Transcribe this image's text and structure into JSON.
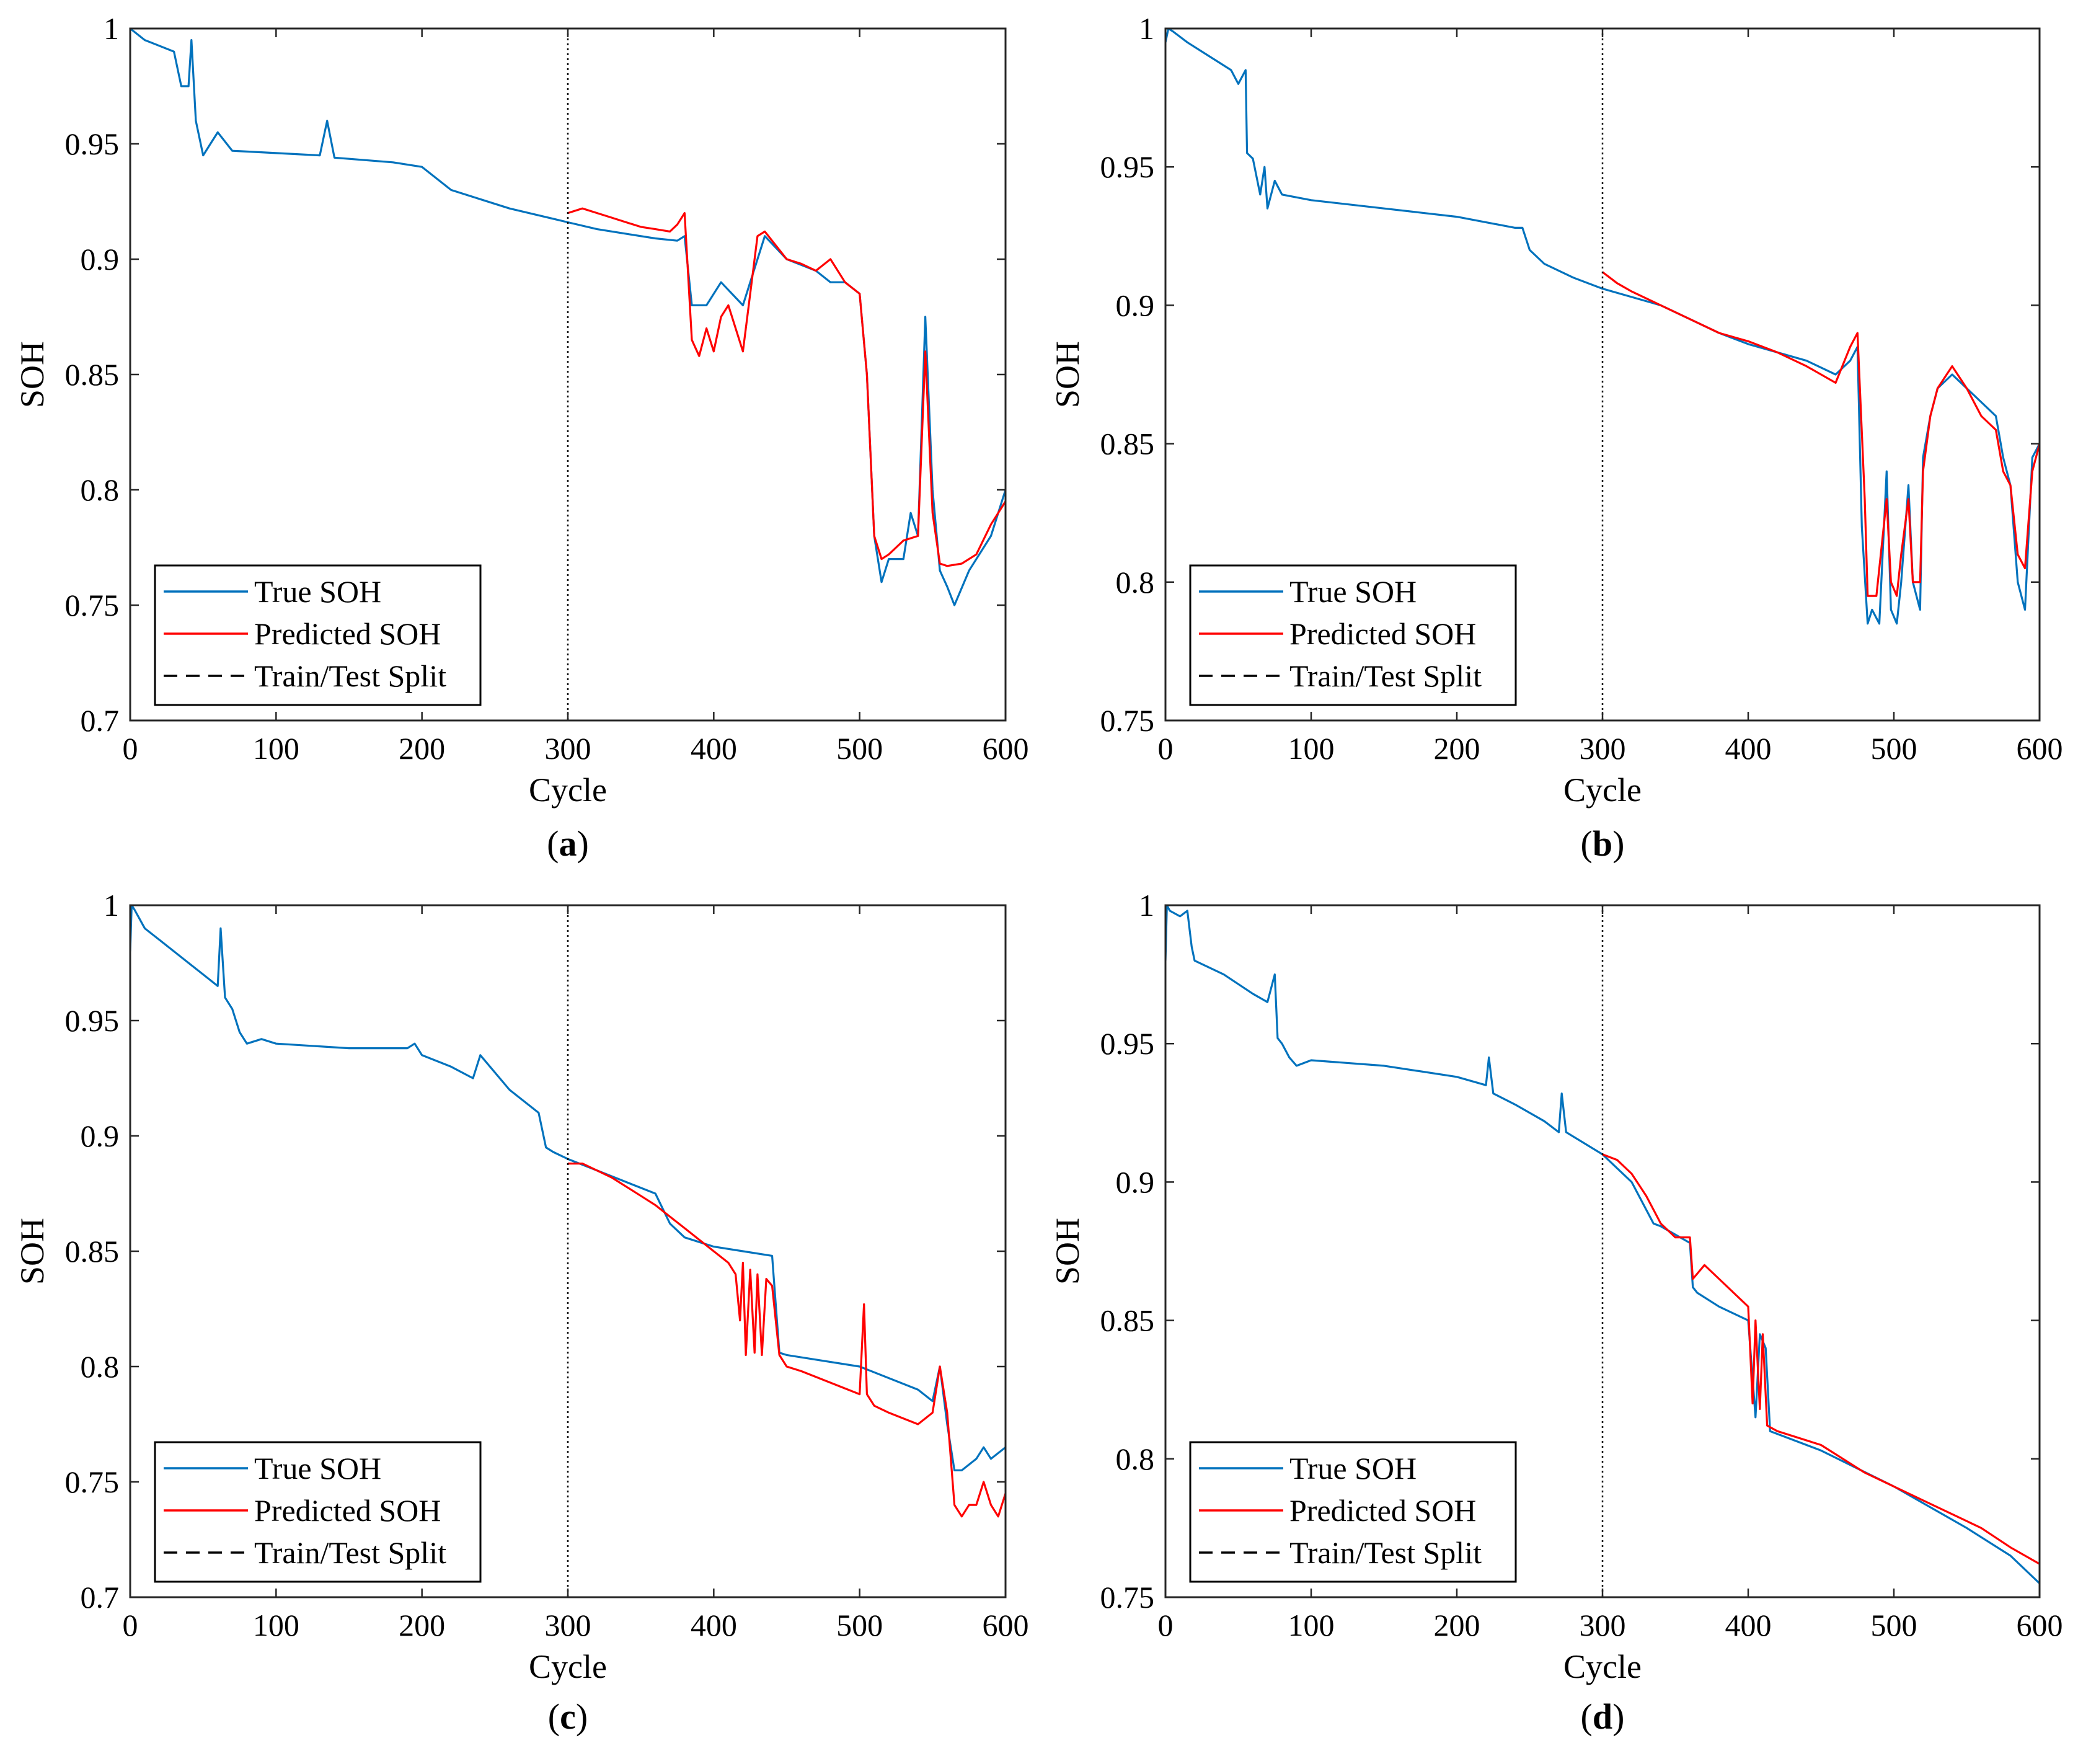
{
  "figure": {
    "panel_labels": [
      "a",
      "b",
      "c",
      "d"
    ],
    "colors": {
      "true": "#0072BD",
      "predicted": "#FF0000",
      "split": "#000000"
    }
  },
  "chart_data": [
    {
      "type": "line",
      "panel": "a",
      "xlabel": "Cycle",
      "ylabel": "SOH",
      "xlim": [
        0,
        600
      ],
      "ylim": [
        0.7,
        1.0
      ],
      "xticks": [
        "0",
        "100",
        "200",
        "300",
        "400",
        "500",
        "600"
      ],
      "yticks": [
        "0.7",
        "0.75",
        "0.8",
        "0.85",
        "0.9",
        "0.95",
        "1"
      ],
      "split_x": 300,
      "legend": [
        "True SOH",
        "Predicted SOH",
        "Train/Test Split"
      ],
      "series": [
        {
          "name": "True SOH",
          "color": "#0072BD",
          "x": [
            0,
            10,
            30,
            35,
            40,
            42,
            45,
            50,
            55,
            60,
            70,
            100,
            130,
            135,
            140,
            180,
            200,
            220,
            240,
            260,
            280,
            300,
            320,
            340,
            360,
            375,
            380,
            385,
            395,
            405,
            420,
            435,
            450,
            470,
            480,
            490,
            500,
            505,
            510,
            515,
            520,
            530,
            535,
            540,
            545,
            550,
            555,
            560,
            565,
            575,
            590,
            600
          ],
          "y": [
            1.0,
            0.995,
            0.99,
            0.975,
            0.975,
            0.995,
            0.96,
            0.945,
            0.95,
            0.955,
            0.947,
            0.946,
            0.945,
            0.96,
            0.944,
            0.942,
            0.94,
            0.93,
            0.926,
            0.922,
            0.919,
            0.916,
            0.913,
            0.911,
            0.909,
            0.908,
            0.91,
            0.88,
            0.88,
            0.89,
            0.88,
            0.91,
            0.9,
            0.895,
            0.89,
            0.89,
            0.885,
            0.85,
            0.78,
            0.76,
            0.77,
            0.77,
            0.79,
            0.78,
            0.875,
            0.8,
            0.765,
            0.758,
            0.75,
            0.765,
            0.78,
            0.8
          ]
        },
        {
          "name": "Predicted SOH",
          "color": "#FF0000",
          "x": [
            300,
            310,
            320,
            330,
            340,
            350,
            360,
            370,
            375,
            380,
            385,
            390,
            395,
            400,
            405,
            410,
            420,
            430,
            435,
            440,
            450,
            460,
            470,
            480,
            490,
            500,
            505,
            510,
            515,
            520,
            530,
            540,
            545,
            550,
            555,
            560,
            570,
            580,
            590,
            600
          ],
          "y": [
            0.92,
            0.922,
            0.92,
            0.918,
            0.916,
            0.914,
            0.913,
            0.912,
            0.915,
            0.92,
            0.865,
            0.858,
            0.87,
            0.86,
            0.875,
            0.88,
            0.86,
            0.91,
            0.912,
            0.908,
            0.9,
            0.898,
            0.895,
            0.9,
            0.89,
            0.885,
            0.85,
            0.78,
            0.77,
            0.772,
            0.778,
            0.78,
            0.86,
            0.79,
            0.768,
            0.767,
            0.768,
            0.772,
            0.785,
            0.795
          ]
        }
      ]
    },
    {
      "type": "line",
      "panel": "b",
      "xlabel": "Cycle",
      "ylabel": "SOH",
      "xlim": [
        0,
        600
      ],
      "ylim": [
        0.75,
        1.0
      ],
      "xticks": [
        "0",
        "100",
        "200",
        "300",
        "400",
        "500",
        "600"
      ],
      "yticks": [
        "0.75",
        "0.8",
        "0.85",
        "0.9",
        "0.95",
        "1"
      ],
      "split_x": 300,
      "legend": [
        "True SOH",
        "Predicted SOH",
        "Train/Test Split"
      ],
      "series": [
        {
          "name": "True SOH",
          "color": "#0072BD",
          "x": [
            0,
            2,
            5,
            15,
            30,
            45,
            50,
            55,
            56,
            60,
            65,
            68,
            70,
            75,
            80,
            100,
            150,
            200,
            240,
            245,
            250,
            260,
            280,
            300,
            320,
            340,
            360,
            380,
            400,
            420,
            440,
            460,
            470,
            475,
            478,
            482,
            485,
            490,
            495,
            498,
            502,
            505,
            510,
            513,
            518,
            520,
            525,
            530,
            540,
            550,
            560,
            570,
            575,
            580,
            585,
            590,
            595,
            600
          ],
          "y": [
            0.995,
            1.0,
            0.999,
            0.995,
            0.99,
            0.985,
            0.98,
            0.985,
            0.955,
            0.953,
            0.94,
            0.95,
            0.935,
            0.945,
            0.94,
            0.938,
            0.935,
            0.932,
            0.928,
            0.928,
            0.92,
            0.915,
            0.91,
            0.906,
            0.903,
            0.9,
            0.895,
            0.89,
            0.886,
            0.883,
            0.88,
            0.875,
            0.88,
            0.885,
            0.82,
            0.785,
            0.79,
            0.785,
            0.84,
            0.79,
            0.785,
            0.8,
            0.835,
            0.8,
            0.79,
            0.845,
            0.86,
            0.87,
            0.875,
            0.87,
            0.865,
            0.86,
            0.845,
            0.835,
            0.8,
            0.79,
            0.845,
            0.85
          ]
        },
        {
          "name": "Predicted SOH",
          "color": "#FF0000",
          "x": [
            300,
            310,
            320,
            340,
            360,
            380,
            400,
            420,
            440,
            460,
            470,
            475,
            480,
            482,
            488,
            495,
            498,
            502,
            505,
            510,
            513,
            518,
            520,
            525,
            530,
            540,
            550,
            560,
            570,
            575,
            580,
            585,
            590,
            595,
            600
          ],
          "y": [
            0.912,
            0.908,
            0.905,
            0.9,
            0.895,
            0.89,
            0.887,
            0.883,
            0.878,
            0.872,
            0.885,
            0.89,
            0.83,
            0.795,
            0.795,
            0.83,
            0.8,
            0.795,
            0.81,
            0.83,
            0.8,
            0.8,
            0.84,
            0.86,
            0.87,
            0.878,
            0.87,
            0.86,
            0.855,
            0.84,
            0.835,
            0.81,
            0.805,
            0.84,
            0.85
          ]
        }
      ]
    },
    {
      "type": "line",
      "panel": "c",
      "xlabel": "Cycle",
      "ylabel": "SOH",
      "xlim": [
        0,
        600
      ],
      "ylim": [
        0.7,
        1.0
      ],
      "xticks": [
        "0",
        "100",
        "200",
        "300",
        "400",
        "500",
        "600"
      ],
      "yticks": [
        "0.7",
        "0.75",
        "0.8",
        "0.85",
        "0.9",
        "0.95",
        "1"
      ],
      "split_x": 300,
      "legend": [
        "True SOH",
        "Predicted SOH",
        "Train/Test Split"
      ],
      "series": [
        {
          "name": "True SOH",
          "color": "#0072BD",
          "x": [
            0,
            1,
            3,
            10,
            20,
            30,
            40,
            50,
            60,
            62,
            65,
            70,
            75,
            80,
            90,
            100,
            150,
            190,
            195,
            200,
            220,
            235,
            240,
            260,
            280,
            285,
            290,
            300,
            320,
            340,
            360,
            370,
            380,
            400,
            420,
            440,
            445,
            450,
            500,
            540,
            550,
            555,
            560,
            565,
            570,
            580,
            585,
            590,
            600
          ],
          "y": [
            0.98,
            1.0,
            0.998,
            0.99,
            0.985,
            0.98,
            0.975,
            0.97,
            0.965,
            0.99,
            0.96,
            0.955,
            0.945,
            0.94,
            0.942,
            0.94,
            0.938,
            0.938,
            0.94,
            0.935,
            0.93,
            0.925,
            0.935,
            0.92,
            0.91,
            0.895,
            0.893,
            0.89,
            0.885,
            0.88,
            0.875,
            0.862,
            0.856,
            0.852,
            0.85,
            0.848,
            0.806,
            0.805,
            0.8,
            0.79,
            0.785,
            0.8,
            0.775,
            0.755,
            0.755,
            0.76,
            0.765,
            0.76,
            0.765
          ]
        },
        {
          "name": "Predicted SOH",
          "color": "#FF0000",
          "x": [
            300,
            310,
            320,
            330,
            340,
            350,
            360,
            370,
            380,
            390,
            400,
            410,
            415,
            418,
            420,
            422,
            425,
            428,
            430,
            433,
            436,
            440,
            445,
            450,
            460,
            480,
            500,
            503,
            505,
            510,
            520,
            540,
            550,
            555,
            560,
            565,
            570,
            575,
            580,
            585,
            590,
            595,
            600
          ],
          "y": [
            0.888,
            0.888,
            0.885,
            0.882,
            0.878,
            0.874,
            0.87,
            0.865,
            0.86,
            0.855,
            0.85,
            0.845,
            0.84,
            0.82,
            0.845,
            0.805,
            0.842,
            0.806,
            0.84,
            0.805,
            0.838,
            0.835,
            0.805,
            0.8,
            0.798,
            0.793,
            0.788,
            0.827,
            0.788,
            0.783,
            0.78,
            0.775,
            0.78,
            0.8,
            0.78,
            0.74,
            0.735,
            0.74,
            0.74,
            0.75,
            0.74,
            0.735,
            0.745
          ]
        }
      ]
    },
    {
      "type": "line",
      "panel": "d",
      "xlabel": "Cycle",
      "ylabel": "SOH",
      "xlim": [
        0,
        600
      ],
      "ylim": [
        0.75,
        1.0
      ],
      "xticks": [
        "0",
        "100",
        "200",
        "300",
        "400",
        "500",
        "600"
      ],
      "yticks": [
        "0.75",
        "0.8",
        "0.85",
        "0.9",
        "0.95",
        "1"
      ],
      "split_x": 300,
      "legend": [
        "True SOH",
        "Predicted SOH",
        "Train/Test Split"
      ],
      "series": [
        {
          "name": "True SOH",
          "color": "#0072BD",
          "x": [
            0,
            1,
            3,
            10,
            15,
            18,
            20,
            40,
            60,
            70,
            75,
            77,
            80,
            85,
            90,
            100,
            150,
            200,
            220,
            222,
            225,
            240,
            260,
            270,
            272,
            275,
            300,
            310,
            320,
            330,
            335,
            340,
            360,
            362,
            365,
            380,
            400,
            405,
            408,
            412,
            415,
            450,
            500,
            550,
            580,
            600
          ],
          "y": [
            0.98,
            1.0,
            0.998,
            0.996,
            0.998,
            0.985,
            0.98,
            0.975,
            0.968,
            0.965,
            0.975,
            0.952,
            0.95,
            0.945,
            0.942,
            0.944,
            0.942,
            0.938,
            0.935,
            0.945,
            0.932,
            0.928,
            0.922,
            0.918,
            0.932,
            0.918,
            0.91,
            0.905,
            0.9,
            0.89,
            0.885,
            0.884,
            0.878,
            0.862,
            0.86,
            0.855,
            0.85,
            0.815,
            0.845,
            0.84,
            0.81,
            0.803,
            0.79,
            0.775,
            0.765,
            0.755
          ]
        },
        {
          "name": "Predicted SOH",
          "color": "#FF0000",
          "x": [
            300,
            310,
            320,
            330,
            340,
            350,
            360,
            362,
            370,
            380,
            390,
            400,
            403,
            405,
            408,
            410,
            413,
            420,
            450,
            480,
            500,
            520,
            540,
            560,
            580,
            600
          ],
          "y": [
            0.91,
            0.908,
            0.903,
            0.895,
            0.885,
            0.88,
            0.88,
            0.865,
            0.87,
            0.865,
            0.86,
            0.855,
            0.82,
            0.85,
            0.818,
            0.845,
            0.812,
            0.81,
            0.805,
            0.795,
            0.79,
            0.785,
            0.78,
            0.775,
            0.768,
            0.762
          ]
        }
      ]
    }
  ]
}
